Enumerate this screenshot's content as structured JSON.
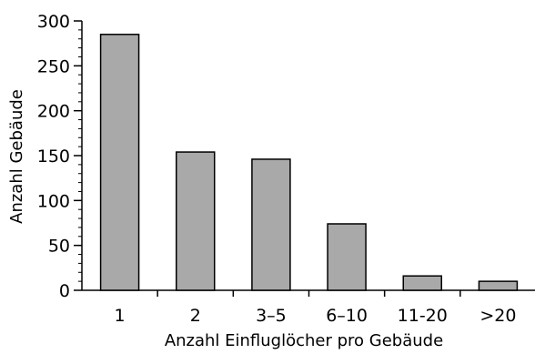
{
  "chart_data": {
    "type": "bar",
    "title": "",
    "xlabel": "Anzahl Einfluglöcher pro Gebäude",
    "ylabel": "Anzahl Gebäude",
    "categories": [
      "1",
      "2",
      "3–5",
      "6–10",
      "11-20",
      ">20"
    ],
    "values": [
      285,
      154,
      146,
      74,
      16,
      10
    ],
    "ylim": [
      0,
      300
    ],
    "yticks": [
      0,
      50,
      100,
      150,
      200,
      250,
      300
    ],
    "grid": false,
    "legend": "none",
    "colors": {
      "bar_fill": "#a9a9a9",
      "bar_stroke": "#000000",
      "axis": "#000000"
    }
  }
}
